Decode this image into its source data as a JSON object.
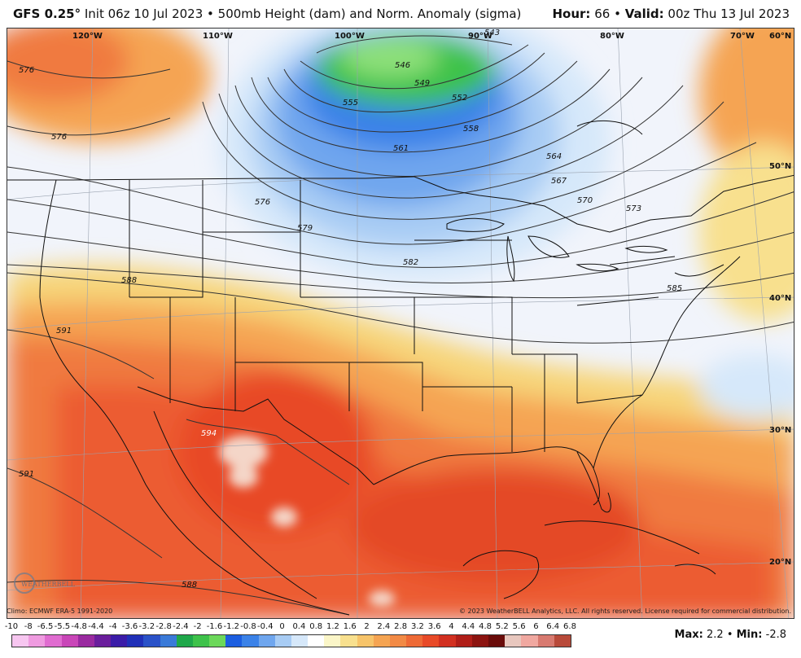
{
  "header": {
    "model": "GFS 0.25",
    "degree": "°",
    "init": "Init 06z 10 Jul 2023",
    "product": "500mb Height (dam) and Norm. Anomaly (sigma)",
    "hour_label": "Hour:",
    "hour_value": "66",
    "valid_label": "Valid:",
    "valid_value": "00z Thu 13 Jul 2023",
    "separator": "•"
  },
  "map": {
    "longitude_labels": [
      "120°W",
      "110°W",
      "100°W",
      "90°W",
      "80°W",
      "70°W",
      "60°N"
    ],
    "latitude_labels": [
      "50°N",
      "40°N",
      "30°N",
      "20°N"
    ],
    "contour_labels": [
      "543",
      "546",
      "549",
      "552",
      "555",
      "558",
      "561",
      "564",
      "567",
      "570",
      "573",
      "576",
      "576",
      "576",
      "579",
      "582",
      "585",
      "588",
      "588",
      "591",
      "591",
      "594"
    ]
  },
  "footer": {
    "climo": "Climo: ECMWF ERA-5 1991-2020",
    "copyright": "© 2023 WeatherBELL Analytics, LLC. All rights reserved. License required for commercial distribution.",
    "logo_text": "WEATHERBELL"
  },
  "scale": {
    "labels": [
      "-10",
      "-8",
      "-6.5",
      "-5.5",
      "-4.8",
      "-4.4",
      "-4",
      "-3.6",
      "-3.2",
      "-2.8",
      "-2.4",
      "-2",
      "-1.6",
      "-1.2",
      "-0.8",
      "-0.4",
      "0",
      "0.4",
      "0.8",
      "1.2",
      "1.6",
      "2",
      "2.4",
      "2.8",
      "3.2",
      "3.6",
      "4",
      "4.4",
      "4.8",
      "5.2",
      "5.6",
      "6",
      "6.4",
      "6.8"
    ],
    "colors": [
      "#f7c6f0",
      "#ef9be0",
      "#e06cd0",
      "#c946b8",
      "#9a2aa0",
      "#6a1e9c",
      "#3b1ca8",
      "#2030b8",
      "#2a52c8",
      "#3a7ad8",
      "#1fa84a",
      "#3ec24a",
      "#6cd85a",
      "#1c5ee0",
      "#3b82e8",
      "#6fa6ee",
      "#a8ccf4",
      "#d6e8fa",
      "#ffffff",
      "#fbf6c8",
      "#f8e08e",
      "#f7c46a",
      "#f5a452",
      "#f28a45",
      "#ee6a36",
      "#e84a28",
      "#d23020",
      "#b01e18",
      "#8c1410",
      "#6a0c0a",
      "#e8c7be",
      "#f0a8a0",
      "#d87a70",
      "#b84a3a"
    ]
  },
  "stats": {
    "max_label": "Max:",
    "max_value": "2.2",
    "min_label": "Min:",
    "min_value": "-2.8",
    "separator": "•"
  }
}
